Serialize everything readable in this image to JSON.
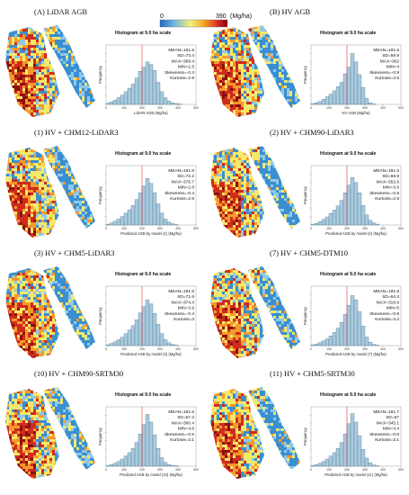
{
  "colorbar": {
    "min_label": "0",
    "max_label": "390",
    "unit_label": "(Mg/ha)",
    "colors": [
      "#2166c4",
      "#6bb3e0",
      "#f5f07a",
      "#f5a623",
      "#d73027",
      "#8b0000"
    ]
  },
  "map_colors": {
    "low": "#3a8fd1",
    "mid_low": "#8ec8ea",
    "mid": "#f3e96b",
    "mid_high": "#f59a2a",
    "high": "#cf2b1e",
    "very_high": "#8a1010"
  },
  "histogram_style": {
    "bar_fill": "#a9cbe0",
    "bar_stroke": "#3b5a70",
    "mean_line": "#e0302a"
  },
  "chart_data": [
    {
      "type": "bar",
      "panel_label": "(A) LiDAR AGB",
      "title": "Histogram at 9.0 ha scale",
      "xlabel": "LiDAR AGB (Mg/ha)",
      "ylabel": "Frequency",
      "xlim": [
        0,
        500
      ],
      "xticks": [
        "0",
        "100",
        "200",
        "300",
        "400",
        "500"
      ],
      "bin_width": 20,
      "mean_line_x": 200,
      "values": [
        0.003,
        0.006,
        0.01,
        0.016,
        0.022,
        0.03,
        0.038,
        0.048,
        0.062,
        0.078,
        0.088,
        0.1,
        0.094,
        0.08,
        0.052,
        0.03,
        0.016,
        0.008,
        0.004,
        0.002,
        0.001,
        0,
        0,
        0,
        0
      ],
      "stats": [
        "MEAN=191.6",
        "SD=73.4",
        "MAX=389.4",
        "MIN=1.5",
        "Skewness=-0.4",
        "Kurtosis=2.9"
      ]
    },
    {
      "type": "bar",
      "panel_label": "(B) HV AGB",
      "title": "Histogram at 9.0 ha scale",
      "xlabel": "HV AGB (Mg/ha)",
      "ylabel": "Frequency",
      "xlim": [
        0,
        500
      ],
      "xticks": [
        "0",
        "100",
        "200",
        "300",
        "400",
        "500"
      ],
      "bin_width": 20,
      "mean_line_x": 200,
      "values": [
        0.002,
        0.004,
        0.007,
        0.012,
        0.018,
        0.024,
        0.032,
        0.042,
        0.052,
        0.072,
        0.088,
        0.12,
        0.1,
        0.07,
        0.04,
        0.014,
        0.004,
        0.001,
        0,
        0,
        0,
        0,
        0,
        0,
        0
      ],
      "stats": [
        "MEAN=191.5",
        "SD=59.9",
        "MAX=302",
        "MIN=4",
        "Skewness=-0.9",
        "Kurtosis=3.5"
      ]
    },
    {
      "type": "bar",
      "panel_label": "(1) HV + CHM12-LiDAR3",
      "title": "Histogram at 9.0 ha scale",
      "xlabel": "Predicted AGB by model (1) (Mg/ha)",
      "ylabel": "Frequency",
      "xlim": [
        0,
        500
      ],
      "xticks": [
        "0",
        "100",
        "200",
        "300",
        "400",
        "500"
      ],
      "bin_width": 20,
      "mean_line_x": 200,
      "values": [
        0.002,
        0.005,
        0.009,
        0.014,
        0.02,
        0.028,
        0.036,
        0.046,
        0.06,
        0.076,
        0.092,
        0.11,
        0.098,
        0.076,
        0.05,
        0.028,
        0.014,
        0.007,
        0.003,
        0.001,
        0,
        0,
        0,
        0,
        0
      ],
      "stats": [
        "MEAN=191.6",
        "SD=72.2",
        "MAX=376.7",
        "MIN=2.8",
        "Skewness=-0.4",
        "Kurtosis=2.9"
      ]
    },
    {
      "type": "bar",
      "panel_label": "(2) HV + CHM90-LiDAR3",
      "title": "Histogram at 9.0 ha scale",
      "xlabel": "Predicted AGB by model (2) (Mg/ha)",
      "ylabel": "Frequency",
      "xlim": [
        0,
        500
      ],
      "xticks": [
        "0",
        "100",
        "200",
        "300",
        "400",
        "500"
      ],
      "bin_width": 20,
      "mean_line_x": 200,
      "values": [
        0.002,
        0.004,
        0.008,
        0.013,
        0.019,
        0.027,
        0.035,
        0.045,
        0.058,
        0.076,
        0.094,
        0.112,
        0.1,
        0.076,
        0.046,
        0.024,
        0.011,
        0.005,
        0.002,
        0,
        0,
        0,
        0,
        0,
        0
      ],
      "stats": [
        "MEAN=191.6",
        "SD=69.9",
        "MAX=352.6",
        "MIN=3.8",
        "Skewness=-0.5",
        "Kurtosis=2.9"
      ]
    },
    {
      "type": "bar",
      "panel_label": "(3) HV + CHM5-LiDAR3",
      "title": "Histogram at 9.0 ha scale",
      "xlabel": "Predicted AGB by model (3) (Mg/ha)",
      "ylabel": "Frequency",
      "xlim": [
        0,
        500
      ],
      "xticks": [
        "0",
        "100",
        "200",
        "300",
        "400",
        "500"
      ],
      "bin_width": 20,
      "mean_line_x": 200,
      "values": [
        0.002,
        0.005,
        0.009,
        0.014,
        0.02,
        0.028,
        0.037,
        0.047,
        0.061,
        0.077,
        0.092,
        0.108,
        0.098,
        0.076,
        0.05,
        0.028,
        0.014,
        0.007,
        0.003,
        0.001,
        0,
        0,
        0,
        0,
        0
      ],
      "stats": [
        "MEAN=191.6",
        "SD=71.6",
        "MAX=374.4",
        "MIN=3.9",
        "Skewness=-0.4",
        "Kurtosis=3"
      ]
    },
    {
      "type": "bar",
      "panel_label": "(7) HV + CHM5-DTM10",
      "title": "Histogram at 9.0 ha scale",
      "xlabel": "Predicted AGB by model (7) (Mg/ha)",
      "ylabel": "Frequency",
      "xlim": [
        0,
        500
      ],
      "xticks": [
        "0",
        "100",
        "200",
        "300",
        "400",
        "500"
      ],
      "bin_width": 20,
      "mean_line_x": 200,
      "values": [
        0.002,
        0.004,
        0.007,
        0.011,
        0.016,
        0.023,
        0.031,
        0.041,
        0.055,
        0.074,
        0.095,
        0.118,
        0.108,
        0.08,
        0.046,
        0.02,
        0.008,
        0.003,
        0.001,
        0,
        0,
        0,
        0,
        0,
        0
      ],
      "stats": [
        "MEAN=191.8",
        "SD=64.3",
        "MAX=318.9",
        "MIN=5",
        "Skewness=-0.8",
        "Kurtosis=3.2"
      ]
    },
    {
      "type": "bar",
      "panel_label": "(10) HV + CHM90-SRTM30",
      "title": "Histogram at 9.0 ha scale",
      "xlabel": "Predicted AGB by model (10) (Mg/ha)",
      "ylabel": "Frequency",
      "xlim": [
        0,
        500
      ],
      "xticks": [
        "0",
        "100",
        "200",
        "300",
        "400",
        "500"
      ],
      "bin_width": 20,
      "mean_line_x": 200,
      "values": [
        0.002,
        0.004,
        0.007,
        0.011,
        0.017,
        0.024,
        0.032,
        0.042,
        0.056,
        0.076,
        0.098,
        0.122,
        0.104,
        0.074,
        0.042,
        0.02,
        0.009,
        0.004,
        0.002,
        0.001,
        0,
        0,
        0,
        0,
        0
      ],
      "stats": [
        "MEAN=191.6",
        "SD=67.2",
        "MAX=360.4",
        "MIN=4.6",
        "Skewness=-0.5",
        "Kurtosis=3.1"
      ]
    },
    {
      "type": "bar",
      "panel_label": "(11) HV + CHM5-SRTM30",
      "title": "Histogram at 9.0 ha scale",
      "xlabel": "Predicted AGB by model (11) (Mg/ha)",
      "ylabel": "Frequency",
      "xlim": [
        0,
        500
      ],
      "xticks": [
        "0",
        "100",
        "200",
        "300",
        "400",
        "500"
      ],
      "bin_width": 20,
      "mean_line_x": 200,
      "values": [
        0.002,
        0.004,
        0.007,
        0.011,
        0.017,
        0.024,
        0.032,
        0.042,
        0.056,
        0.076,
        0.1,
        0.124,
        0.104,
        0.072,
        0.04,
        0.019,
        0.008,
        0.003,
        0.001,
        0,
        0,
        0,
        0,
        0,
        0
      ],
      "stats": [
        "MEAN=191.7",
        "SD=67",
        "MAX=345.1",
        "MIN=4.4",
        "Skewness=-0.6",
        "Kurtosis=3.1"
      ]
    }
  ]
}
